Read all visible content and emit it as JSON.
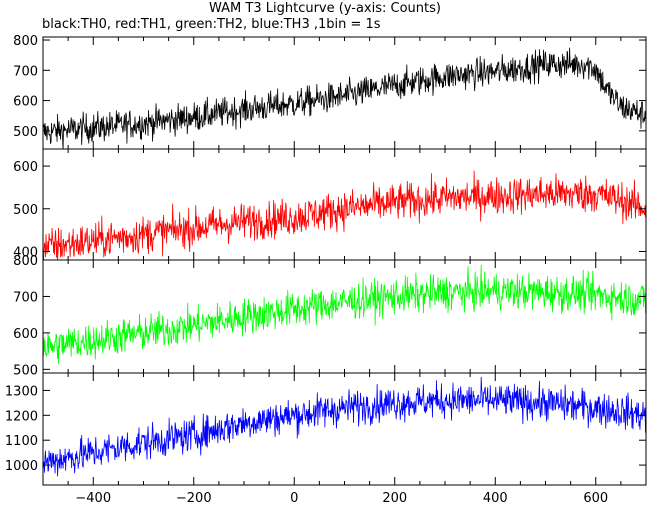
{
  "chart_data": {
    "type": "line",
    "title": "WAM T3 Lightcurve (y-axis: Counts)",
    "subtitle": "black:TH0, red:TH1, green:TH2, blue:TH3 ,1bin = 1s",
    "xlabel": "",
    "xlim": [
      -500,
      700
    ],
    "x_ticks": [
      -400,
      -200,
      0,
      200,
      400,
      600
    ],
    "x_tick_labels": [
      "−400",
      "−200",
      "0",
      "200",
      "400",
      "600"
    ],
    "grid": false,
    "panels": [
      {
        "name": "TH0",
        "color": "#000000",
        "ylim": [
          440,
          810
        ],
        "y_ticks": [
          500,
          600,
          700,
          800
        ],
        "trend": {
          "x": [
            -500,
            -400,
            -300,
            -200,
            -100,
            0,
            100,
            200,
            300,
            400,
            500,
            580,
            600,
            620,
            650,
            700
          ],
          "y": [
            495,
            510,
            525,
            545,
            570,
            590,
            615,
            650,
            680,
            695,
            720,
            720,
            705,
            640,
            580,
            550
          ]
        },
        "noise": 25
      },
      {
        "name": "TH1",
        "color": "#ff0000",
        "ylim": [
          380,
          640
        ],
        "y_ticks": [
          400,
          500,
          600
        ],
        "trend": {
          "x": [
            -500,
            -400,
            -300,
            -200,
            -100,
            0,
            100,
            200,
            300,
            400,
            500,
            600,
            650,
            700
          ],
          "y": [
            410,
            425,
            440,
            455,
            470,
            480,
            500,
            515,
            525,
            530,
            535,
            535,
            520,
            500
          ]
        },
        "noise": 22
      },
      {
        "name": "TH2",
        "color": "#00ff00",
        "ylim": [
          490,
          800
        ],
        "y_ticks": [
          500,
          600,
          700,
          800
        ],
        "trend": {
          "x": [
            -500,
            -400,
            -300,
            -200,
            -100,
            0,
            100,
            200,
            300,
            400,
            500,
            600,
            700
          ],
          "y": [
            560,
            580,
            600,
            620,
            645,
            665,
            685,
            700,
            710,
            715,
            712,
            705,
            690
          ]
        },
        "noise": 25
      },
      {
        "name": "TH3",
        "color": "#0000ff",
        "ylim": [
          920,
          1370
        ],
        "y_ticks": [
          1000,
          1100,
          1200,
          1300
        ],
        "trend": {
          "x": [
            -500,
            -400,
            -300,
            -200,
            -100,
            0,
            100,
            200,
            300,
            400,
            500,
            600,
            700
          ],
          "y": [
            1010,
            1050,
            1090,
            1120,
            1170,
            1200,
            1230,
            1250,
            1260,
            1260,
            1250,
            1230,
            1200
          ]
        },
        "noise": 35
      }
    ]
  }
}
